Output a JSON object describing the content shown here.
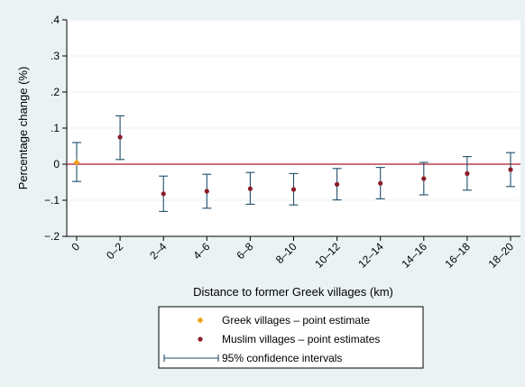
{
  "chart_data": {
    "type": "scatter",
    "title": "",
    "xlabel": "Distance to former Greek villages (km)",
    "ylabel": "Percentage change (%)",
    "ylim": [
      -0.2,
      0.4
    ],
    "y_ticks": [
      -0.2,
      -0.1,
      0,
      0.1,
      0.2,
      0.3,
      0.4
    ],
    "y_tick_labels": [
      "−.2",
      "−.1",
      "0",
      ".1",
      ".2",
      ".3",
      ".4"
    ],
    "categories": [
      "0",
      "0–2",
      "2–4",
      "4–6",
      "6–8",
      "8–10",
      "10–12",
      "12–14",
      "14–16",
      "16–18",
      "18–20"
    ],
    "reference_line": {
      "y": 0,
      "color": "#a6192e"
    },
    "grid": true,
    "legend_position": "bottom",
    "series": [
      {
        "name": "Greek villages – point estimate",
        "marker": "diamond",
        "color": "#f0a21d",
        "points": [
          {
            "category": "0",
            "y": 0.005
          }
        ]
      },
      {
        "name": "Muslim villages – point estimates",
        "marker": "circle",
        "color": "#8a1d27",
        "points": [
          {
            "category": "0–2",
            "y": 0.075
          },
          {
            "category": "2–4",
            "y": -0.082
          },
          {
            "category": "4–6",
            "y": -0.075
          },
          {
            "category": "6–8",
            "y": -0.068
          },
          {
            "category": "8–10",
            "y": -0.07
          },
          {
            "category": "10–12",
            "y": -0.056
          },
          {
            "category": "12–14",
            "y": -0.053
          },
          {
            "category": "14–16",
            "y": -0.04
          },
          {
            "category": "16–18",
            "y": -0.026
          },
          {
            "category": "18–20",
            "y": -0.015
          }
        ]
      },
      {
        "name": "95% confidence intervals",
        "type": "errorbar",
        "color": "#1f4e6b",
        "intervals": [
          {
            "category": "0",
            "low": -0.048,
            "high": 0.06
          },
          {
            "category": "0–2",
            "low": 0.013,
            "high": 0.134
          },
          {
            "category": "2–4",
            "low": -0.131,
            "high": -0.033
          },
          {
            "category": "4–6",
            "low": -0.122,
            "high": -0.028
          },
          {
            "category": "6–8",
            "low": -0.111,
            "high": -0.023
          },
          {
            "category": "8–10",
            "low": -0.113,
            "high": -0.026
          },
          {
            "category": "10–12",
            "low": -0.099,
            "high": -0.012
          },
          {
            "category": "12–14",
            "low": -0.096,
            "high": -0.009
          },
          {
            "category": "14–16",
            "low": -0.085,
            "high": 0.005
          },
          {
            "category": "16–18",
            "low": -0.072,
            "high": 0.021
          },
          {
            "category": "18–20",
            "low": -0.062,
            "high": 0.032
          }
        ]
      }
    ],
    "colors": {
      "background": "#eaf2f3",
      "plot_area": "#ffffff",
      "grid": "#eaf2f3",
      "axis": "#000000",
      "reference_line": "#a6192e",
      "ci": "#1f4e6b",
      "greek": "#f0a21d",
      "muslim": "#8a1d27"
    }
  }
}
